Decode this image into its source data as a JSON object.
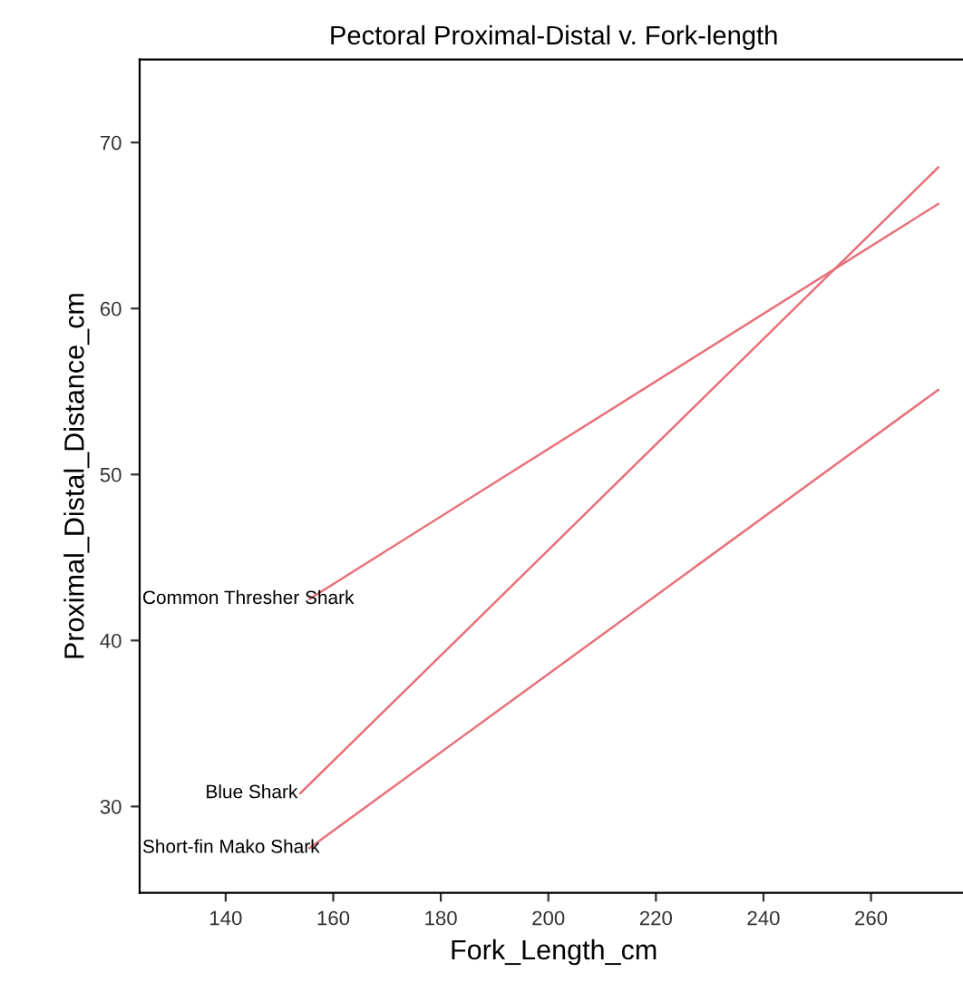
{
  "chart_data": {
    "type": "line",
    "title": "Pectoral Proximal-Distal v. Fork-length",
    "xlabel": "Fork_Length_cm",
    "ylabel": "Proximal_Distal_Distance_cm",
    "xlim": [
      124,
      278
    ],
    "ylim": [
      24.8,
      75
    ],
    "xticks": [
      140,
      160,
      180,
      200,
      220,
      240,
      260
    ],
    "yticks": [
      30,
      40,
      50,
      60,
      70
    ],
    "grid": false,
    "legend": false,
    "marker": "none",
    "line_style": "solid",
    "series": [
      {
        "name": "Common Thresher Shark",
        "color": "#e8707a",
        "x": [
          155.6,
          272.5
        ],
        "values": [
          42.5,
          66.3
        ]
      },
      {
        "name": "Blue Shark",
        "color": "#e8707a",
        "x": [
          153.9,
          272.5
        ],
        "values": [
          30.8,
          68.5
        ]
      },
      {
        "name": "Short-fin Mako Shark",
        "color": "#e8707a",
        "x": [
          155.6,
          272.5
        ],
        "values": [
          27.5,
          55.1
        ]
      }
    ]
  }
}
